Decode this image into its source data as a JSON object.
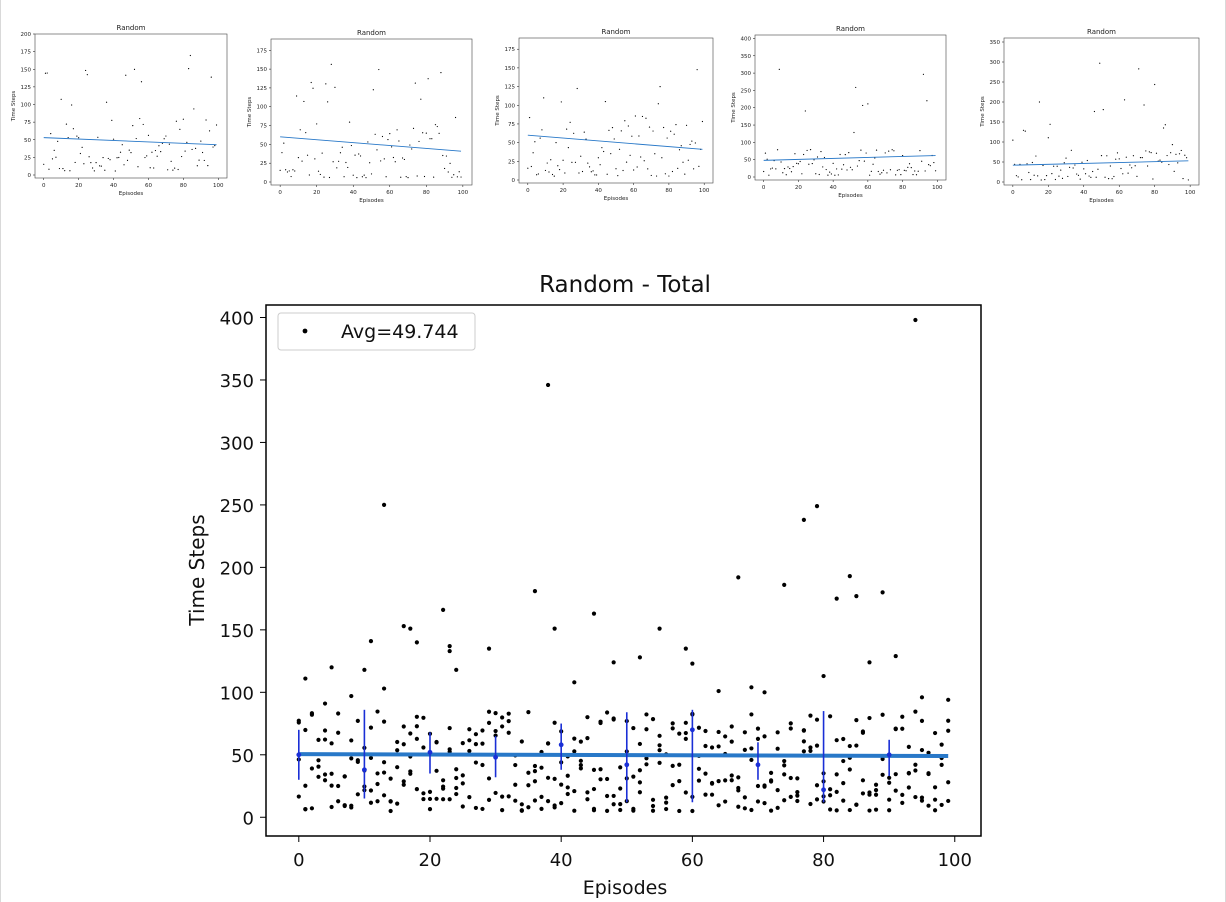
{
  "figure": {
    "thumbnails": [
      {
        "title": "Random",
        "xlabel": "Episodes",
        "ylabel": "Time Steps",
        "ylim": [
          0,
          200
        ],
        "yticks": [
          0,
          25,
          50,
          75,
          100,
          125,
          150,
          175,
          200
        ],
        "fit": [
          53,
          43
        ],
        "seed": 11
      },
      {
        "title": "Random",
        "xlabel": "Episodes",
        "ylabel": "Time Steps",
        "ylim": [
          0,
          190
        ],
        "yticks": [
          0,
          25,
          50,
          75,
          100,
          125,
          150,
          175
        ],
        "fit": [
          60,
          41
        ],
        "seed": 23
      },
      {
        "title": "Random",
        "xlabel": "Episodes",
        "ylabel": "Time Steps",
        "ylim": [
          0,
          190
        ],
        "yticks": [
          0,
          25,
          50,
          75,
          100,
          125,
          150,
          175
        ],
        "fit": [
          60,
          41
        ],
        "seed": 37
      },
      {
        "title": "Random",
        "xlabel": "Episodes",
        "ylabel": "Time Steps",
        "ylim": [
          0,
          410
        ],
        "yticks": [
          0,
          50,
          100,
          150,
          200,
          250,
          300,
          350,
          400
        ],
        "fit": [
          48,
          62
        ],
        "seed": 41
      },
      {
        "title": "Random",
        "xlabel": "Episodes",
        "ylabel": "Time Steps",
        "ylim": [
          0,
          360
        ],
        "yticks": [
          0,
          50,
          100,
          150,
          200,
          250,
          300,
          350
        ],
        "fit": [
          42,
          53
        ],
        "seed": 53
      }
    ]
  },
  "chart_data": {
    "type": "scatter",
    "title": "Random - Total",
    "xlabel": "Episodes",
    "ylabel": "Time Steps",
    "xlim": [
      -5,
      104
    ],
    "ylim": [
      -15,
      410
    ],
    "xticks": [
      0,
      20,
      40,
      60,
      80,
      100
    ],
    "yticks": [
      0,
      50,
      100,
      150,
      200,
      250,
      300,
      350,
      400
    ],
    "legend": {
      "label": "Avg=49.744",
      "position": "upper-left"
    },
    "average": 49.744,
    "fit_line": {
      "x": [
        0,
        99
      ],
      "y": [
        50.5,
        49
      ]
    },
    "outliers": [
      {
        "x": 1,
        "y": 111
      },
      {
        "x": 4,
        "y": 91
      },
      {
        "x": 5,
        "y": 120
      },
      {
        "x": 8,
        "y": 97
      },
      {
        "x": 10,
        "y": 118
      },
      {
        "x": 11,
        "y": 141
      },
      {
        "x": 13,
        "y": 250
      },
      {
        "x": 13,
        "y": 103
      },
      {
        "x": 16,
        "y": 153
      },
      {
        "x": 17,
        "y": 151
      },
      {
        "x": 18,
        "y": 140
      },
      {
        "x": 22,
        "y": 166
      },
      {
        "x": 23,
        "y": 137
      },
      {
        "x": 23,
        "y": 133
      },
      {
        "x": 24,
        "y": 118
      },
      {
        "x": 29,
        "y": 135
      },
      {
        "x": 36,
        "y": 181
      },
      {
        "x": 38,
        "y": 346
      },
      {
        "x": 39,
        "y": 151
      },
      {
        "x": 42,
        "y": 108
      },
      {
        "x": 45,
        "y": 163
      },
      {
        "x": 48,
        "y": 124
      },
      {
        "x": 52,
        "y": 128
      },
      {
        "x": 55,
        "y": 151
      },
      {
        "x": 59,
        "y": 135
      },
      {
        "x": 60,
        "y": 123
      },
      {
        "x": 64,
        "y": 101
      },
      {
        "x": 67,
        "y": 192
      },
      {
        "x": 69,
        "y": 104
      },
      {
        "x": 71,
        "y": 100
      },
      {
        "x": 74,
        "y": 186
      },
      {
        "x": 77,
        "y": 238
      },
      {
        "x": 79,
        "y": 249
      },
      {
        "x": 80,
        "y": 113
      },
      {
        "x": 82,
        "y": 175
      },
      {
        "x": 84,
        "y": 193
      },
      {
        "x": 85,
        "y": 177
      },
      {
        "x": 87,
        "y": 124
      },
      {
        "x": 89,
        "y": 180
      },
      {
        "x": 91,
        "y": 129
      },
      {
        "x": 94,
        "y": 398
      },
      {
        "x": 95,
        "y": 96
      },
      {
        "x": 99,
        "y": 94
      }
    ],
    "error_bars": [
      {
        "x": 0,
        "mean": 50,
        "low": 30,
        "high": 70
      },
      {
        "x": 10,
        "mean": 38,
        "low": 15,
        "high": 86
      },
      {
        "x": 20,
        "mean": 52,
        "low": 35,
        "high": 68
      },
      {
        "x": 30,
        "mean": 48,
        "low": 32,
        "high": 65
      },
      {
        "x": 40,
        "mean": 58,
        "low": 38,
        "high": 75
      },
      {
        "x": 50,
        "mean": 42,
        "low": 12,
        "high": 84
      },
      {
        "x": 60,
        "mean": 70,
        "low": 12,
        "high": 86
      },
      {
        "x": 70,
        "mean": 42,
        "low": 30,
        "high": 60
      },
      {
        "x": 80,
        "mean": 22,
        "low": 12,
        "high": 85
      },
      {
        "x": 90,
        "mean": 50,
        "low": 33,
        "high": 62
      }
    ]
  }
}
